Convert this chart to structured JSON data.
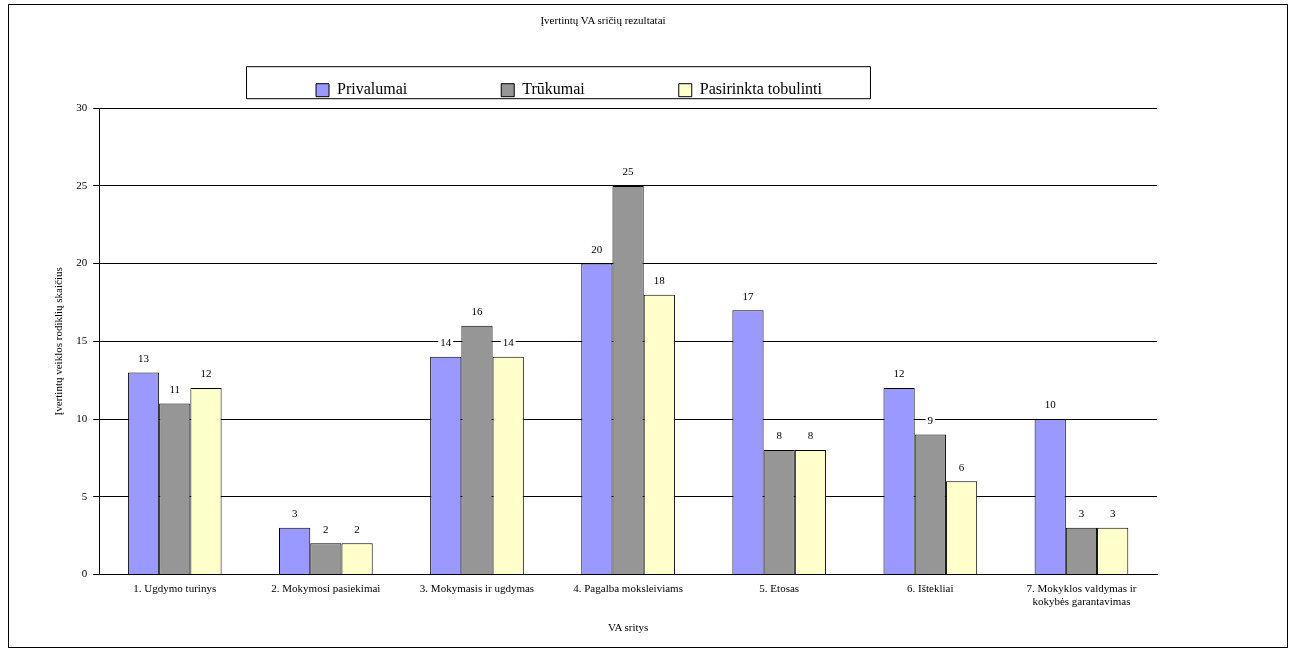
{
  "chart_data": {
    "type": "bar",
    "title": "Įvertintų VA sričių rezultatai",
    "xlabel": "VA sritys",
    "ylabel": "Įvertintų veiklos rodiklių skaičius",
    "categories": [
      "1. Ugdymo turinys",
      "2. Mokymosi pasiekimai",
      "3. Mokymasis ir ugdymas",
      "4. Pagalba moksleiviams",
      "5. Etosas",
      "6. Ištekliai",
      "7. Mokyklos valdymas ir kokybės garantavimas"
    ],
    "series": [
      {
        "name": "Privalumai",
        "color": "#9999ff",
        "values": [
          13,
          3,
          14,
          20,
          17,
          12,
          10
        ]
      },
      {
        "name": "Trūkumai",
        "color": "#969696",
        "values": [
          11,
          2,
          16,
          25,
          8,
          9,
          3
        ]
      },
      {
        "name": "Pasirinkta tobulinti",
        "color": "#ffffcc",
        "values": [
          12,
          2,
          14,
          18,
          8,
          6,
          3
        ]
      }
    ],
    "ylim": [
      0,
      30
    ],
    "yticks": [
      0,
      5,
      10,
      15,
      20,
      25,
      30
    ],
    "grid": "y",
    "legend": "top",
    "data_labels": true
  }
}
